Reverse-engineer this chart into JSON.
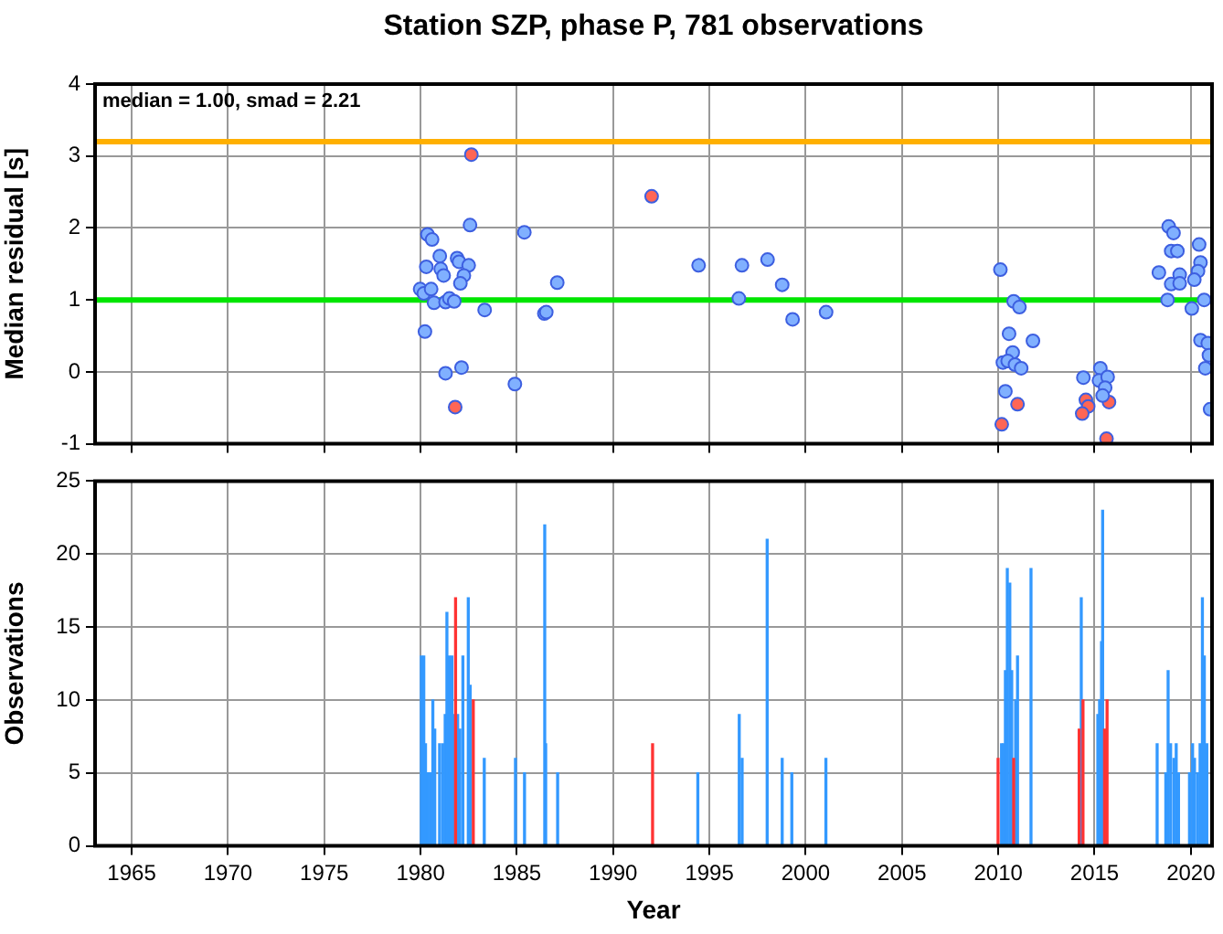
{
  "chart_data": [
    {
      "type": "scatter",
      "title": "Station SZP, phase P, 781 observations",
      "ylabel": "Median residual [s]",
      "annotations": [
        "median = 1.00, smad = 2.21"
      ],
      "xlim": [
        1963.1,
        2021.1
      ],
      "xticks": [
        1965,
        1970,
        1975,
        1980,
        1985,
        1990,
        1995,
        2000,
        2005,
        2010,
        2015,
        2020
      ],
      "ylim": [
        -1,
        4
      ],
      "yticks": [
        -1,
        0,
        1,
        2,
        3,
        4
      ],
      "grid": true,
      "tick_labels": "y",
      "marker": "circle",
      "ref_lines": [
        {
          "axis": "y",
          "value": 3.2,
          "color": "#ffb000"
        },
        {
          "axis": "y",
          "value": 1.0,
          "color": "#00e600"
        }
      ],
      "series": [
        {
          "color": "#80b0ff",
          "x": [
            1980.36,
            1980.6,
            1982.57,
            1985.39,
            1980.3,
            1981.0,
            1981.05,
            1981.2,
            1981.9,
            1982.0,
            1982.5,
            1982.25,
            1982.07,
            1979.98,
            1980.17,
            1980.55,
            1980.7,
            1981.3,
            1981.5,
            1981.75,
            1983.33,
            1986.43,
            1986.53,
            1987.1,
            1980.23,
            1981.3,
            1982.13,
            1984.9,
            1994.44,
            1996.69,
            1998.02,
            1996.53,
            1998.78,
            1999.32,
            2001.06,
            2010.11,
            2010.8,
            2011.1,
            2010.56,
            2011.8,
            2010.75,
            2010.24,
            2010.49,
            2010.87,
            2011.19,
            2010.37,
            2015.3,
            2014.42,
            2015.23,
            2015.68,
            2015.55,
            2015.42,
            2018.85,
            2019.1,
            2018.98,
            2019.3,
            2018.34,
            2019.42,
            2018.98,
            2019.42,
            2018.79,
            2020.43,
            2020.5,
            2020.37,
            2020.18,
            2020.05,
            2020.69,
            2020.5,
            2020.88,
            2020.94,
            2020.75,
            2021.0
          ],
          "values": [
            1.91,
            1.84,
            2.04,
            1.94,
            1.46,
            1.61,
            1.43,
            1.34,
            1.58,
            1.53,
            1.48,
            1.34,
            1.23,
            1.15,
            1.09,
            1.15,
            0.96,
            0.97,
            1.02,
            0.98,
            0.86,
            0.81,
            0.83,
            1.24,
            0.56,
            -0.02,
            0.06,
            -0.17,
            1.48,
            1.48,
            1.56,
            1.02,
            1.21,
            0.73,
            0.83,
            1.42,
            0.98,
            0.9,
            0.53,
            0.43,
            0.27,
            0.13,
            0.15,
            0.1,
            0.05,
            -0.27,
            0.05,
            -0.08,
            -0.12,
            -0.07,
            -0.22,
            -0.33,
            2.02,
            1.93,
            1.68,
            1.68,
            1.38,
            1.35,
            1.22,
            1.23,
            1.0,
            1.77,
            1.52,
            1.4,
            1.28,
            0.88,
            1.0,
            0.44,
            0.4,
            0.23,
            0.05,
            -0.52
          ]
        },
        {
          "color": "#ff6655",
          "x": [
            1992.0,
            1982.64,
            1981.8,
            2011.0,
            2010.18,
            2014.55,
            2014.67,
            2014.36,
            2015.75,
            2015.62
          ],
          "values": [
            2.44,
            3.02,
            -0.49,
            -0.45,
            -0.73,
            -0.39,
            -0.48,
            -0.58,
            -0.42,
            -0.93
          ]
        }
      ]
    },
    {
      "type": "bar",
      "xlabel": "Year",
      "ylabel": "Observations",
      "xlim": [
        1963.1,
        2021.1
      ],
      "xticks": [
        1965,
        1970,
        1975,
        1980,
        1985,
        1990,
        1995,
        2000,
        2005,
        2010,
        2015,
        2020
      ],
      "ylim": [
        0,
        25
      ],
      "yticks": [
        0,
        5,
        10,
        15,
        20,
        25
      ],
      "grid": true,
      "series": [
        {
          "color": "#3399ff",
          "x": [
            1980.04,
            1980.17,
            1980.26,
            1980.39,
            1980.52,
            1980.64,
            1980.74,
            1980.99,
            1981.15,
            1981.28,
            1981.37,
            1981.5,
            1981.63,
            1981.75,
            1981.93,
            1982.04,
            1982.2,
            1982.48,
            1982.58,
            1983.31,
            1984.93,
            1985.4,
            1986.45,
            1986.5,
            1987.12,
            1994.4,
            1996.55,
            1996.7,
            1998.0,
            1998.78,
            1999.28,
            2001.05,
            2010.17,
            2010.27,
            2010.37,
            2010.47,
            2010.6,
            2010.7,
            2010.9,
            2011.0,
            2011.7,
            2014.31,
            2015.17,
            2015.26,
            2015.36,
            2015.42,
            2018.25,
            2018.7,
            2018.82,
            2018.95,
            2019.12,
            2019.24,
            2019.36,
            2019.93,
            2020.09,
            2020.19,
            2020.35,
            2020.48,
            2020.6,
            2020.7,
            2020.83
          ],
          "values": [
            13,
            13,
            7,
            5,
            5,
            10,
            8,
            7,
            7,
            9,
            16,
            13,
            13,
            9,
            9,
            8,
            13,
            17,
            11,
            6,
            6,
            5,
            22,
            7,
            5,
            5,
            9,
            6,
            21,
            6,
            5,
            6,
            7,
            7,
            12,
            19,
            18,
            12,
            10,
            13,
            19,
            17,
            9,
            10,
            14,
            23,
            7,
            5,
            12,
            7,
            6,
            7,
            5,
            5,
            7,
            6,
            5,
            7,
            17,
            13,
            7
          ]
        },
        {
          "color": "#ff3333",
          "x": [
            1981.82,
            1982.74,
            1992.05,
            2009.99,
            2010.8,
            2014.2,
            2014.4,
            2015.52,
            2015.65
          ],
          "values": [
            17,
            10,
            7,
            6,
            6,
            8,
            10,
            8,
            10
          ]
        }
      ]
    }
  ]
}
